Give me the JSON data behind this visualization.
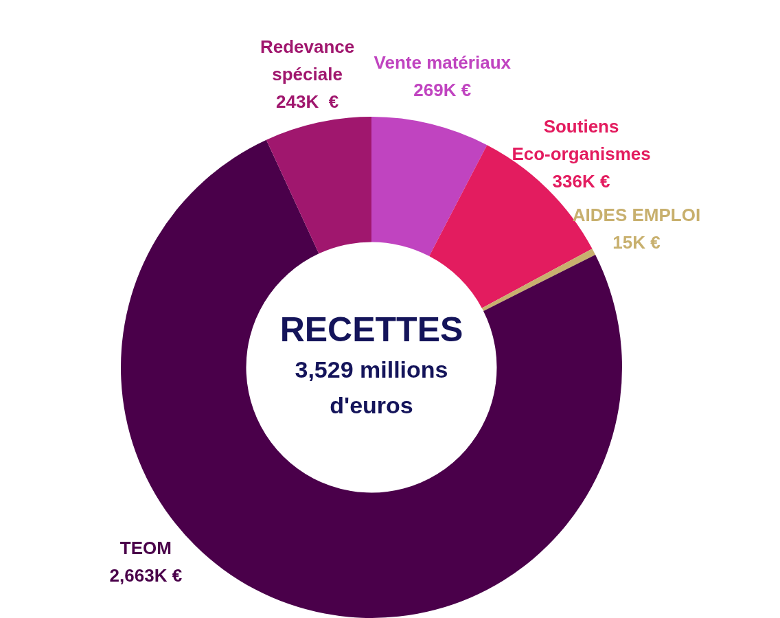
{
  "chart_data": {
    "type": "donut",
    "title": "RECETTES",
    "subtitle": "3,529 millions d'euros",
    "categories": [
      "Vente matériaux",
      "Soutiens Eco-organismes",
      "AIDES EMPLOI",
      "TEOM",
      "Redevance spéciale"
    ],
    "values": [
      269,
      336,
      15,
      2663,
      243
    ],
    "colors": [
      "#c044c0",
      "#e31c5f",
      "#c8b06e",
      "#4a004a",
      "#a0176e"
    ],
    "value_labels": [
      "269K €",
      "336K €",
      "15K €",
      "2,663K €",
      "243K  €"
    ]
  }
}
